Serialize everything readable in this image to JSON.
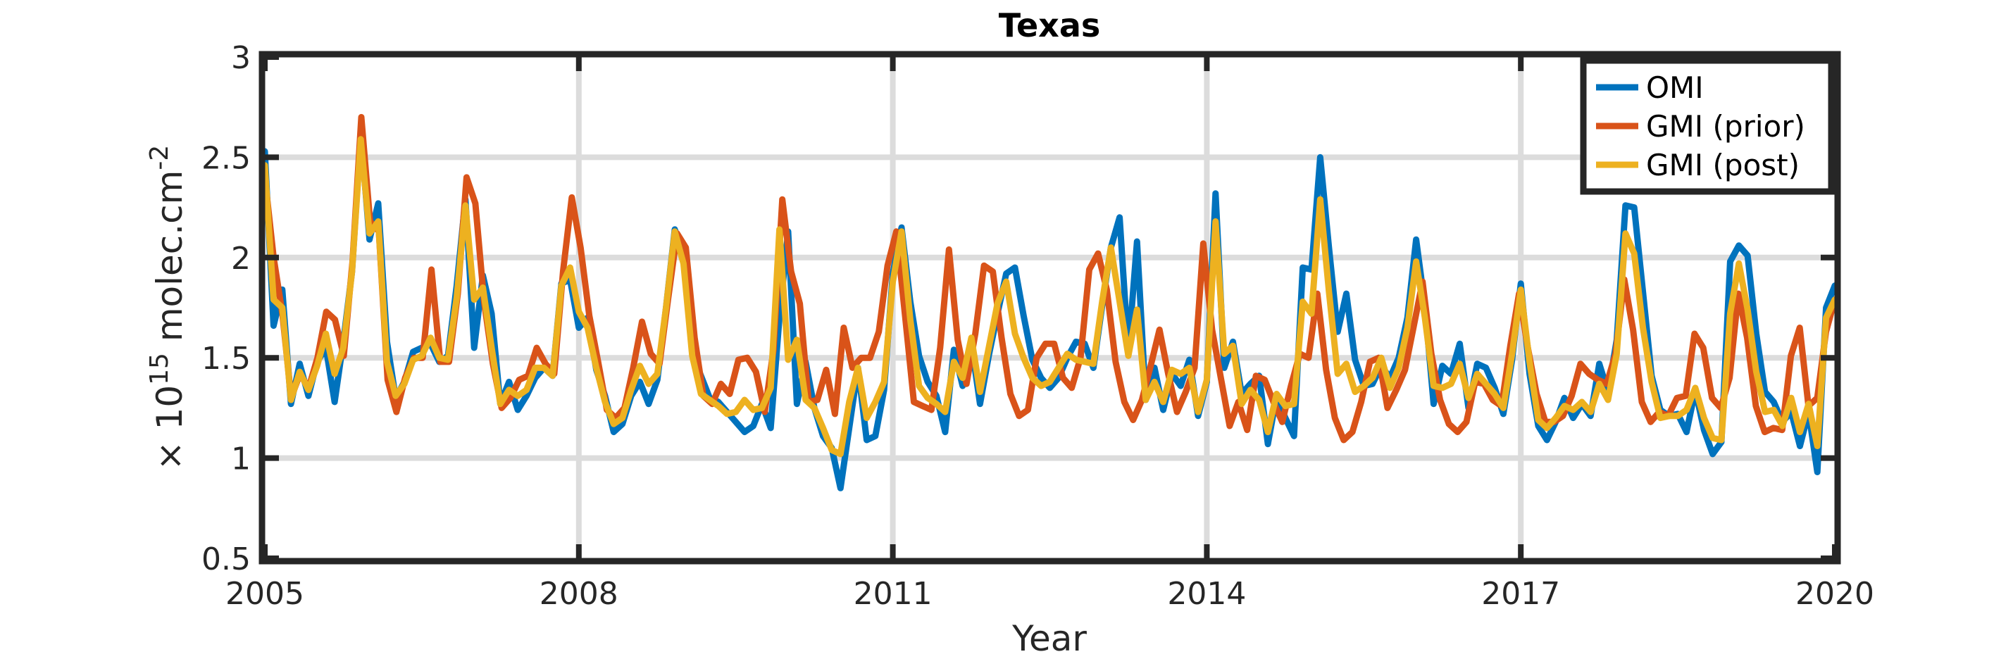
{
  "chart_data": {
    "type": "line",
    "title": "Texas",
    "xlabel": "Year",
    "ylabel_prefix": "× 10",
    "ylabel_exp": "15",
    "ylabel_unit": " molec.cm",
    "ylabel_unit_exp": "-2",
    "xlim": [
      2005,
      2020
    ],
    "ylim": [
      0.5,
      3
    ],
    "x_ticks": [
      2005,
      2008,
      2011,
      2014,
      2017,
      2020
    ],
    "x_tick_labels": [
      "2005",
      "2008",
      "2011",
      "2014",
      "2017",
      "2020"
    ],
    "y_ticks": [
      0.5,
      1,
      1.5,
      2,
      2.5,
      3
    ],
    "y_tick_labels": [
      "0.5",
      "1",
      "1.5",
      "2",
      "2.5",
      "3"
    ],
    "grid": true,
    "legend_position": "top-right",
    "series": [
      {
        "name": "OMI",
        "color": "#0072BD",
        "values": [
          2.53,
          1.66,
          1.84,
          1.27,
          1.47,
          1.31,
          1.48,
          1.55,
          1.28,
          1.58,
          1.93,
          2.62,
          2.09,
          2.27,
          1.58,
          1.3,
          1.38,
          1.53,
          1.55,
          1.57,
          1.48,
          1.51,
          1.86,
          2.29,
          1.55,
          1.91,
          1.72,
          1.27,
          1.38,
          1.24,
          1.31,
          1.4,
          1.45,
          1.41,
          1.87,
          1.89,
          1.65,
          1.7,
          1.44,
          1.31,
          1.13,
          1.17,
          1.31,
          1.38,
          1.27,
          1.39,
          1.75,
          2.14,
          2.02,
          1.52,
          1.41,
          1.3,
          1.28,
          1.23,
          1.18,
          1.13,
          1.16,
          1.27,
          1.15,
          1.7,
          2.13,
          1.27,
          1.48,
          1.25,
          1.11,
          1.05,
          0.85,
          1.15,
          1.45,
          1.09,
          1.11,
          1.34,
          1.92,
          2.15,
          1.78,
          1.51,
          1.38,
          1.31,
          1.13,
          1.54,
          1.36,
          1.57,
          1.27,
          1.51,
          1.72,
          1.92,
          1.95,
          1.71,
          1.49,
          1.4,
          1.35,
          1.4,
          1.5,
          1.58,
          1.57,
          1.45,
          1.76,
          2.05,
          2.2,
          1.53,
          2.08,
          1.29,
          1.45,
          1.24,
          1.42,
          1.36,
          1.49,
          1.21,
          1.38,
          2.32,
          1.45,
          1.58,
          1.32,
          1.37,
          1.41,
          1.07,
          1.31,
          1.2,
          1.11,
          1.95,
          1.94,
          2.5,
          2.05,
          1.63,
          1.82,
          1.49,
          1.36,
          1.37,
          1.46,
          1.4,
          1.5,
          1.7,
          2.09,
          1.76,
          1.27,
          1.46,
          1.42,
          1.57,
          1.25,
          1.47,
          1.45,
          1.35,
          1.22,
          1.49,
          1.87,
          1.42,
          1.16,
          1.09,
          1.18,
          1.3,
          1.2,
          1.27,
          1.21,
          1.47,
          1.33,
          1.59,
          2.26,
          2.25,
          1.83,
          1.41,
          1.24,
          1.21,
          1.22,
          1.13,
          1.34,
          1.14,
          1.02,
          1.08,
          1.98,
          2.06,
          2.01,
          1.62,
          1.33,
          1.28,
          1.18,
          1.23,
          1.06,
          1.23,
          0.93,
          1.75,
          1.86
        ]
      },
      {
        "name": "GMI (prior)",
        "color": "#D95319",
        "values": [
          2.4,
          2.0,
          1.72,
          1.3,
          1.42,
          1.35,
          1.5,
          1.73,
          1.69,
          1.51,
          1.98,
          2.7,
          2.18,
          2.13,
          1.39,
          1.23,
          1.4,
          1.5,
          1.5,
          1.94,
          1.48,
          1.48,
          1.82,
          2.4,
          2.27,
          1.78,
          1.47,
          1.25,
          1.3,
          1.39,
          1.41,
          1.55,
          1.47,
          1.42,
          1.93,
          2.3,
          2.05,
          1.71,
          1.48,
          1.24,
          1.2,
          1.25,
          1.45,
          1.68,
          1.52,
          1.47,
          1.8,
          2.12,
          2.05,
          1.6,
          1.31,
          1.27,
          1.37,
          1.32,
          1.49,
          1.5,
          1.43,
          1.23,
          1.54,
          2.29,
          1.93,
          1.77,
          1.28,
          1.29,
          1.44,
          1.22,
          1.65,
          1.45,
          1.5,
          1.5,
          1.63,
          1.96,
          2.13,
          1.71,
          1.28,
          1.26,
          1.24,
          1.55,
          2.04,
          1.59,
          1.37,
          1.62,
          1.96,
          1.93,
          1.6,
          1.32,
          1.21,
          1.24,
          1.5,
          1.57,
          1.57,
          1.4,
          1.35,
          1.5,
          1.94,
          2.02,
          1.84,
          1.48,
          1.28,
          1.19,
          1.29,
          1.46,
          1.64,
          1.42,
          1.23,
          1.33,
          1.45,
          2.07,
          1.64,
          1.4,
          1.16,
          1.28,
          1.14,
          1.41,
          1.39,
          1.28,
          1.18,
          1.36,
          1.52,
          1.5,
          1.82,
          1.44,
          1.2,
          1.09,
          1.13,
          1.28,
          1.48,
          1.5,
          1.25,
          1.34,
          1.44,
          1.66,
          1.88,
          1.52,
          1.29,
          1.17,
          1.13,
          1.18,
          1.38,
          1.37,
          1.29,
          1.26,
          1.56,
          1.82,
          1.55,
          1.32,
          1.18,
          1.18,
          1.21,
          1.31,
          1.47,
          1.42,
          1.39,
          1.37,
          1.52,
          1.89,
          1.64,
          1.28,
          1.18,
          1.23,
          1.21,
          1.3,
          1.31,
          1.62,
          1.55,
          1.3,
          1.25,
          1.4,
          1.82,
          1.6,
          1.26,
          1.13,
          1.15,
          1.14,
          1.51,
          1.65,
          1.26,
          1.3,
          1.63,
          1.79
        ]
      },
      {
        "name": "GMI (post)",
        "color": "#EDB120",
        "values": [
          2.46,
          1.79,
          1.75,
          1.29,
          1.43,
          1.34,
          1.46,
          1.62,
          1.42,
          1.55,
          1.93,
          2.59,
          2.12,
          2.18,
          1.48,
          1.31,
          1.37,
          1.49,
          1.51,
          1.6,
          1.5,
          1.49,
          1.8,
          2.26,
          1.79,
          1.85,
          1.55,
          1.27,
          1.34,
          1.31,
          1.34,
          1.45,
          1.45,
          1.41,
          1.86,
          1.95,
          1.73,
          1.65,
          1.45,
          1.28,
          1.17,
          1.2,
          1.34,
          1.46,
          1.37,
          1.42,
          1.75,
          2.13,
          1.97,
          1.51,
          1.32,
          1.29,
          1.26,
          1.22,
          1.23,
          1.29,
          1.24,
          1.25,
          1.35,
          2.14,
          1.49,
          1.59,
          1.29,
          1.25,
          1.15,
          1.04,
          1.02,
          1.28,
          1.45,
          1.2,
          1.28,
          1.38,
          1.88,
          2.13,
          1.69,
          1.36,
          1.3,
          1.27,
          1.23,
          1.48,
          1.4,
          1.6,
          1.33,
          1.55,
          1.77,
          1.88,
          1.62,
          1.5,
          1.4,
          1.36,
          1.38,
          1.45,
          1.52,
          1.49,
          1.48,
          1.47,
          1.78,
          2.05,
          1.78,
          1.51,
          1.74,
          1.29,
          1.38,
          1.28,
          1.44,
          1.42,
          1.45,
          1.23,
          1.39,
          2.18,
          1.52,
          1.56,
          1.27,
          1.34,
          1.29,
          1.13,
          1.32,
          1.26,
          1.27,
          1.78,
          1.72,
          2.29,
          1.83,
          1.42,
          1.47,
          1.33,
          1.36,
          1.4,
          1.5,
          1.35,
          1.45,
          1.65,
          1.98,
          1.7,
          1.36,
          1.35,
          1.37,
          1.47,
          1.3,
          1.42,
          1.37,
          1.32,
          1.25,
          1.52,
          1.84,
          1.48,
          1.19,
          1.15,
          1.2,
          1.26,
          1.24,
          1.28,
          1.23,
          1.37,
          1.29,
          1.52,
          2.12,
          2.02,
          1.65,
          1.38,
          1.2,
          1.21,
          1.21,
          1.24,
          1.35,
          1.2,
          1.1,
          1.09,
          1.72,
          1.97,
          1.74,
          1.43,
          1.23,
          1.24,
          1.16,
          1.3,
          1.13,
          1.27,
          1.06,
          1.7,
          1.79
        ]
      }
    ]
  }
}
